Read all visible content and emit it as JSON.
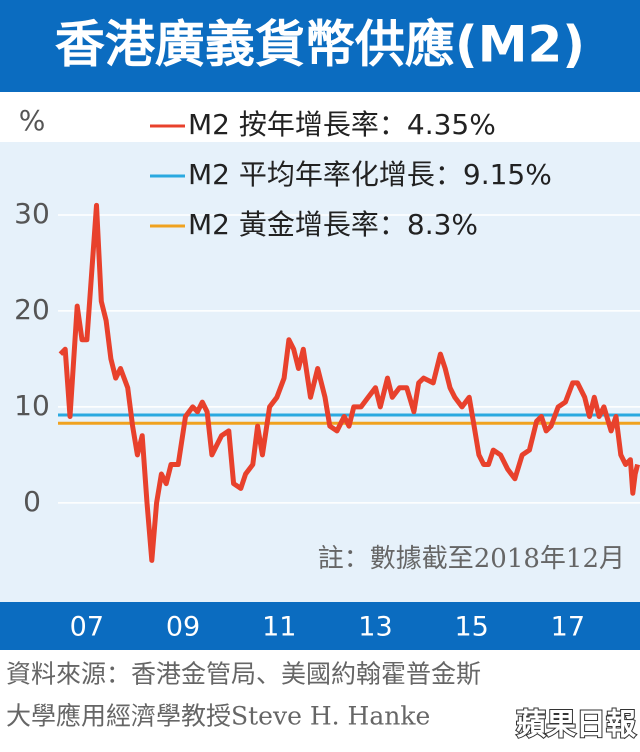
{
  "chart_data": {
    "type": "line",
    "title": "香港廣義貨幣供應(M2)",
    "y_unit": "%",
    "note": "註：數據截至2018年12月",
    "source": [
      "資料來源：香港金管局、美國約翰霍普金斯",
      "大學應用經濟學教授Steve H. Hanke"
    ],
    "logo": "蘋果日報",
    "xlim": [
      2006.9,
      2019.0
    ],
    "xticks": [
      {
        "value": 2007.5,
        "label": "07"
      },
      {
        "value": 2009.5,
        "label": "09"
      },
      {
        "value": 2011.5,
        "label": "11"
      },
      {
        "value": 2013.5,
        "label": "13"
      },
      {
        "value": 2015.5,
        "label": "15"
      },
      {
        "value": 2017.5,
        "label": "17"
      }
    ],
    "ylim": [
      -7,
      35
    ],
    "yticks": [
      0,
      10,
      20,
      30
    ],
    "grid": true,
    "x": [
      2006.95,
      2007.05,
      2007.15,
      2007.3,
      2007.4,
      2007.5,
      2007.6,
      2007.7,
      2007.8,
      2007.9,
      2008.0,
      2008.1,
      2008.2,
      2008.35,
      2008.45,
      2008.55,
      2008.65,
      2008.75,
      2008.85,
      2008.95,
      2009.05,
      2009.15,
      2009.25,
      2009.4,
      2009.55,
      2009.7,
      2009.8,
      2009.9,
      2010.0,
      2010.1,
      2010.2,
      2010.3,
      2010.45,
      2010.55,
      2010.7,
      2010.8,
      2010.95,
      2011.05,
      2011.15,
      2011.3,
      2011.45,
      2011.6,
      2011.7,
      2011.8,
      2011.9,
      2012.0,
      2012.15,
      2012.3,
      2012.45,
      2012.55,
      2012.7,
      2012.85,
      2012.95,
      2013.05,
      2013.2,
      2013.35,
      2013.5,
      2013.6,
      2013.75,
      2013.85,
      2014.0,
      2014.15,
      2014.3,
      2014.4,
      2014.5,
      2014.7,
      2014.85,
      2014.95,
      2015.05,
      2015.15,
      2015.3,
      2015.45,
      2015.55,
      2015.65,
      2015.75,
      2015.85,
      2015.95,
      2016.1,
      2016.25,
      2016.4,
      2016.55,
      2016.7,
      2016.85,
      2016.95,
      2017.05,
      2017.15,
      2017.3,
      2017.45,
      2017.6,
      2017.7,
      2017.85,
      2017.95,
      2018.05,
      2018.15,
      2018.25,
      2018.4,
      2018.5,
      2018.6,
      2018.7,
      2018.8,
      2018.85,
      2018.9,
      2018.95
    ],
    "series": [
      {
        "name": "M2 按年增長率：4.35%",
        "color": "#e8412c",
        "values": [
          15.5,
          16,
          9,
          20.5,
          17,
          17,
          24,
          31,
          21,
          19,
          15,
          13,
          14,
          12,
          8,
          5,
          7,
          0,
          -6,
          0,
          3,
          2,
          4,
          4,
          9,
          10,
          9.5,
          10.5,
          9.5,
          5,
          6,
          7,
          7.5,
          2,
          1.5,
          3,
          4,
          8,
          5,
          10,
          11,
          13,
          17,
          16,
          14,
          16,
          11,
          14,
          11,
          8,
          7.5,
          9,
          8,
          10,
          10,
          11,
          12,
          10,
          13,
          11,
          12,
          12,
          9.5,
          12.5,
          13,
          12.5,
          15.5,
          14,
          12,
          11,
          10,
          11,
          8,
          5,
          4,
          4,
          5.5,
          5,
          3.5,
          2.5,
          5,
          5.5,
          8.5,
          9,
          7.5,
          8,
          10,
          10.5,
          12.5,
          12.5,
          11,
          9,
          11,
          9,
          10,
          7.5,
          9,
          5,
          4,
          4.5,
          1,
          3,
          4
        ]
      }
    ],
    "reference_lines": [
      {
        "name": "M2 平均年率化增長：9.15%",
        "value": 9.15,
        "color": "#2aa9e0"
      },
      {
        "name": "M2 黃金增長率：8.3%",
        "value": 8.3,
        "color": "#f0a21f"
      }
    ]
  }
}
